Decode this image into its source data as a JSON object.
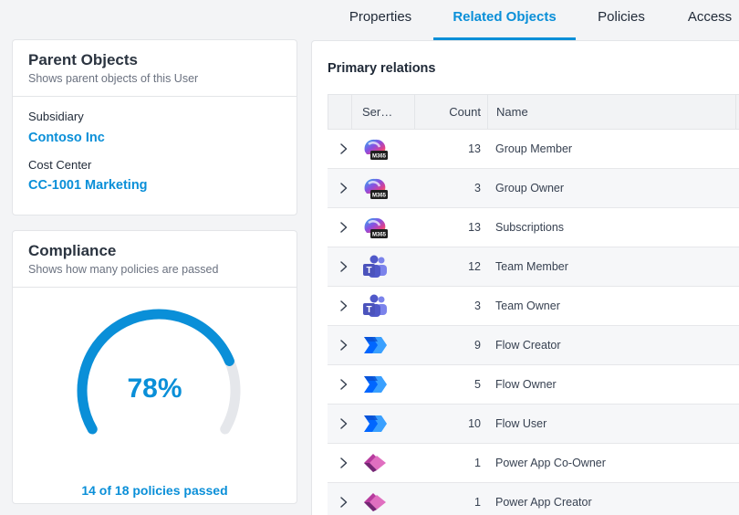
{
  "tabs": [
    {
      "label": "Properties"
    },
    {
      "label": "Related Objects",
      "active": true
    },
    {
      "label": "Policies"
    },
    {
      "label": "Access"
    }
  ],
  "parent_card": {
    "title": "Parent Objects",
    "subtitle": "Shows parent objects of this User",
    "fields": [
      {
        "label": "Subsidiary",
        "value": "Contoso Inc"
      },
      {
        "label": "Cost Center",
        "value": "CC-1001 Marketing"
      }
    ]
  },
  "compliance_card": {
    "title": "Compliance",
    "subtitle": "Shows how many policies are passed",
    "percent_label": "78%",
    "percent": 78,
    "caption": "14 of 18 policies passed"
  },
  "relations": {
    "title": "Primary relations",
    "columns": {
      "service": "Ser…",
      "count": "Count",
      "name": "Name"
    },
    "rows": [
      {
        "service": "m365-icon",
        "count": "13",
        "name": "Group Member"
      },
      {
        "service": "m365-icon",
        "count": "3",
        "name": "Group Owner"
      },
      {
        "service": "m365-icon",
        "count": "13",
        "name": "Subscriptions"
      },
      {
        "service": "teams-icon",
        "count": "12",
        "name": "Team Member"
      },
      {
        "service": "teams-icon",
        "count": "3",
        "name": "Team Owner"
      },
      {
        "service": "power-automate-icon",
        "count": "9",
        "name": "Flow Creator"
      },
      {
        "service": "power-automate-icon",
        "count": "5",
        "name": "Flow Owner"
      },
      {
        "service": "power-automate-icon",
        "count": "10",
        "name": "Flow User"
      },
      {
        "service": "power-apps-icon",
        "count": "1",
        "name": "Power App Co-Owner"
      },
      {
        "service": "power-apps-icon",
        "count": "1",
        "name": "Power App Creator"
      }
    ]
  },
  "colors": {
    "accent": "#0a8fd8",
    "gauge_track": "#e5e7eb"
  }
}
